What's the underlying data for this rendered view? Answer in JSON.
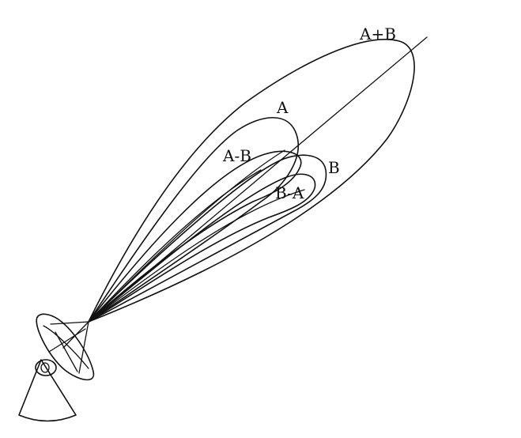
{
  "labels": {
    "sum": "A+B",
    "a": "A",
    "a_minus_b": "A-B",
    "b": "B",
    "b_minus_a": "B-A"
  },
  "colors": {
    "ink": "#111111",
    "background": "#ffffff"
  },
  "icons": {
    "antenna": "radar-dish-antenna-icon"
  }
}
